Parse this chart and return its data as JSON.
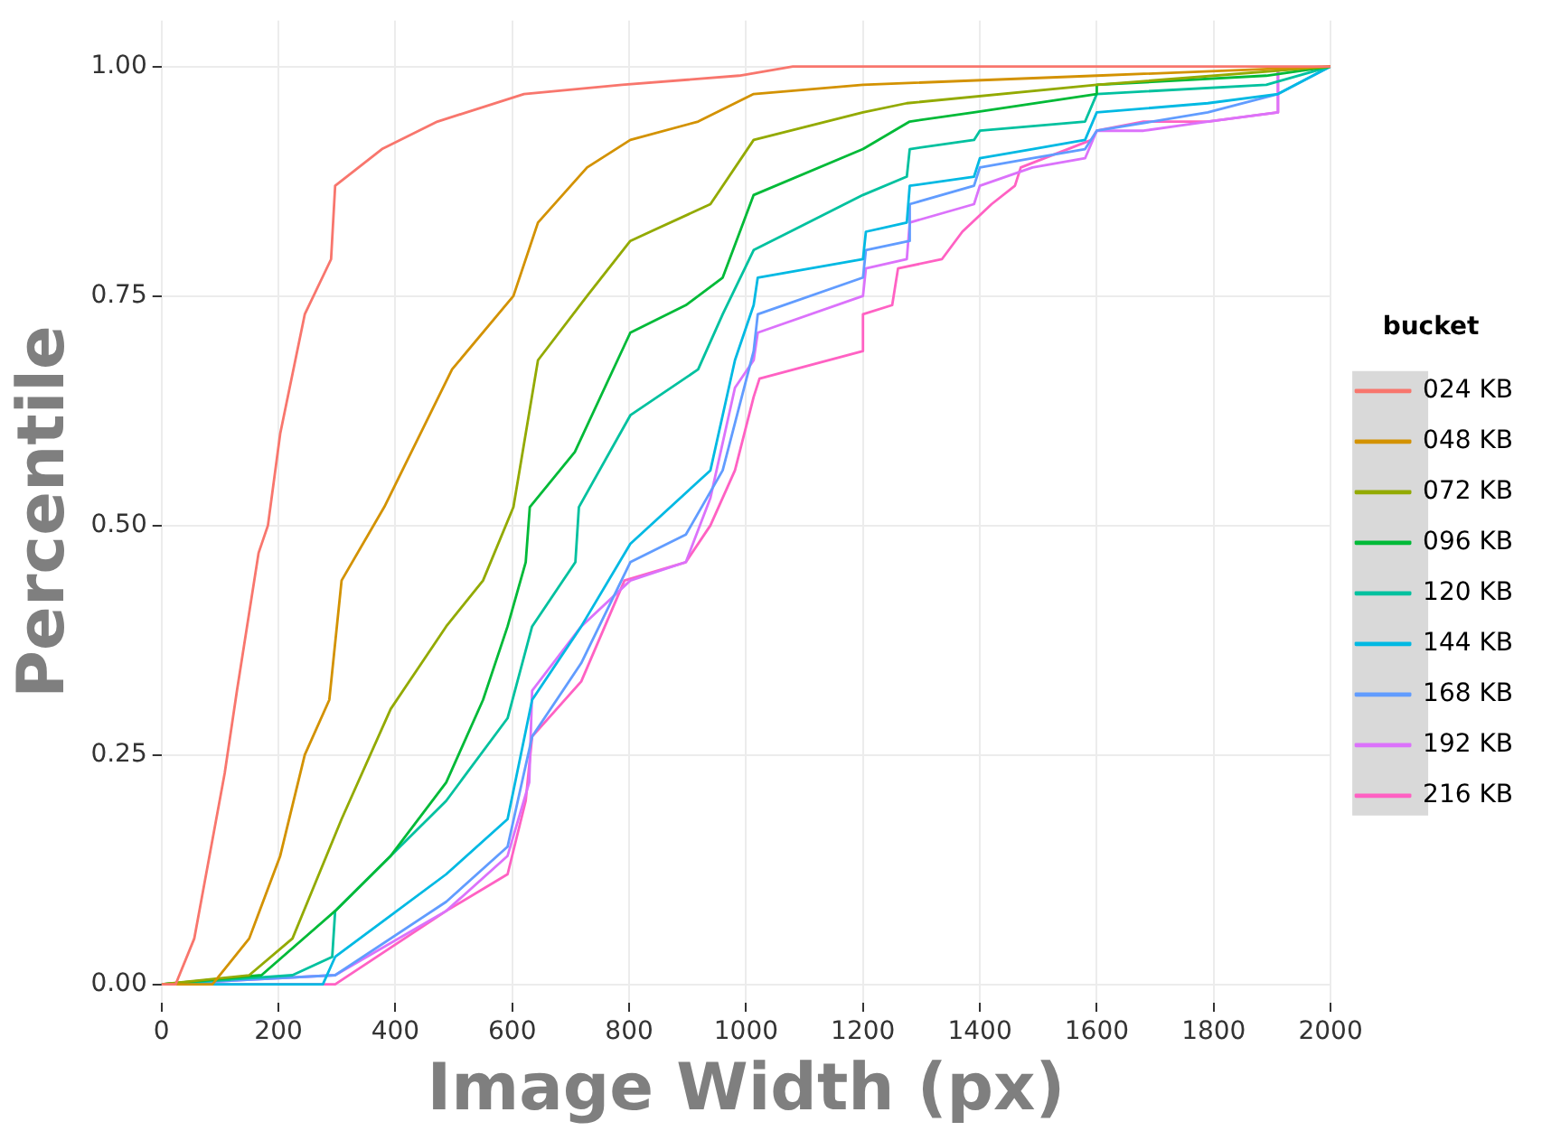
{
  "chart_data": {
    "type": "line",
    "xlabel": "Image Width (px)",
    "ylabel": "Percentile",
    "legend_title": "bucket",
    "legend": "right",
    "grid": true,
    "marker": "none",
    "line_style": "solid",
    "xlim": [
      0,
      2000
    ],
    "xticks": [
      0,
      200,
      400,
      600,
      800,
      1000,
      1200,
      1400,
      1600,
      1800,
      2000
    ],
    "ylim": [
      -0.02,
      1.05
    ],
    "yticks": [
      {
        "value": 0,
        "label": "0.00"
      },
      {
        "value": 0.25,
        "label": "0.25"
      },
      {
        "value": 0.5,
        "label": "0.50"
      },
      {
        "value": 0.75,
        "label": "0.75"
      },
      {
        "value": 1,
        "label": "1.00"
      }
    ],
    "series": [
      {
        "name": "024 KB",
        "color": "#f8766d",
        "x": [
          0,
          24,
          56,
          108,
          129,
          166,
          182,
          203,
          245,
          290,
          297,
          377,
          472,
          620,
          788,
          988,
          1080,
          2000
        ],
        "values": [
          0,
          0,
          0.05,
          0.23,
          0.32,
          0.47,
          0.5,
          0.6,
          0.73,
          0.79,
          0.87,
          0.91,
          0.94,
          0.97,
          0.98,
          0.99,
          1,
          1
        ]
      },
      {
        "name": "048 KB",
        "color": "#d39200",
        "x": [
          0,
          87,
          150,
          203,
          245,
          287,
          308,
          381,
          497,
          602,
          644,
          728,
          802,
          918,
          1013,
          1200,
          1600,
          2000
        ],
        "values": [
          0,
          0,
          0.05,
          0.14,
          0.25,
          0.31,
          0.44,
          0.52,
          0.67,
          0.75,
          0.83,
          0.89,
          0.92,
          0.94,
          0.97,
          0.98,
          0.99,
          1
        ]
      },
      {
        "name": "072 KB",
        "color": "#93aa00",
        "x": [
          0,
          150,
          224,
          308,
          392,
          487,
          550,
          602,
          644,
          728,
          802,
          939,
          1013,
          1200,
          1275,
          1600,
          2000
        ],
        "values": [
          0,
          0.01,
          0.05,
          0.18,
          0.3,
          0.39,
          0.44,
          0.52,
          0.68,
          0.75,
          0.81,
          0.85,
          0.92,
          0.95,
          0.96,
          0.98,
          1
        ]
      },
      {
        "name": "096 KB",
        "color": "#00ba38",
        "x": [
          0,
          171,
          297,
          392,
          487,
          550,
          592,
          623,
          630,
          707,
          802,
          897,
          960,
          1013,
          1200,
          1280,
          1390,
          1600,
          1600,
          1890,
          2000
        ],
        "values": [
          0,
          0.01,
          0.08,
          0.14,
          0.22,
          0.31,
          0.39,
          0.46,
          0.52,
          0.58,
          0.71,
          0.74,
          0.77,
          0.86,
          0.91,
          0.94,
          0.95,
          0.97,
          0.98,
          0.99,
          1
        ]
      },
      {
        "name": "120 KB",
        "color": "#00c19f",
        "x": [
          0,
          224,
          292,
          297,
          392,
          487,
          592,
          634,
          708,
          714,
          802,
          918,
          960,
          1013,
          1200,
          1275,
          1280,
          1390,
          1400,
          1580,
          1600,
          1890,
          2000
        ],
        "values": [
          0,
          0.01,
          0.03,
          0.08,
          0.14,
          0.2,
          0.29,
          0.39,
          0.46,
          0.52,
          0.62,
          0.67,
          0.73,
          0.8,
          0.86,
          0.88,
          0.91,
          0.92,
          0.93,
          0.94,
          0.97,
          0.98,
          1
        ]
      },
      {
        "name": "144 KB",
        "color": "#00b9e3",
        "x": [
          0,
          276,
          297,
          487,
          592,
          634,
          718,
          802,
          939,
          981,
          1013,
          1020,
          1200,
          1205,
          1275,
          1280,
          1390,
          1400,
          1490,
          1580,
          1600,
          1790,
          1910,
          2000
        ],
        "values": [
          0,
          0,
          0.03,
          0.12,
          0.18,
          0.31,
          0.39,
          0.48,
          0.56,
          0.68,
          0.74,
          0.77,
          0.79,
          0.82,
          0.83,
          0.87,
          0.88,
          0.9,
          0.91,
          0.92,
          0.95,
          0.96,
          0.97,
          1
        ]
      },
      {
        "name": "168 KB",
        "color": "#619cff",
        "x": [
          0,
          297,
          487,
          592,
          634,
          718,
          802,
          897,
          960,
          1013,
          1020,
          1200,
          1205,
          1280,
          1280,
          1390,
          1400,
          1490,
          1580,
          1600,
          1790,
          1910,
          2000
        ],
        "values": [
          0,
          0.01,
          0.09,
          0.15,
          0.27,
          0.35,
          0.46,
          0.49,
          0.56,
          0.69,
          0.73,
          0.77,
          0.8,
          0.81,
          0.85,
          0.87,
          0.89,
          0.9,
          0.91,
          0.93,
          0.95,
          0.97,
          1
        ]
      },
      {
        "name": "192 KB",
        "color": "#db72fb",
        "x": [
          0,
          297,
          487,
          592,
          629,
          634,
          718,
          802,
          897,
          939,
          981,
          1013,
          1020,
          1200,
          1205,
          1275,
          1280,
          1390,
          1400,
          1490,
          1580,
          1600,
          1680,
          1790,
          1910,
          1910
        ],
        "values": [
          0,
          0.01,
          0.08,
          0.14,
          0.22,
          0.32,
          0.39,
          0.44,
          0.46,
          0.53,
          0.65,
          0.68,
          0.71,
          0.75,
          0.78,
          0.79,
          0.83,
          0.85,
          0.87,
          0.89,
          0.9,
          0.93,
          0.93,
          0.94,
          0.95,
          1
        ]
      },
      {
        "name": "216 KB",
        "color": "#ff61c3",
        "x": [
          0,
          297,
          487,
          592,
          623,
          634,
          718,
          792,
          897,
          939,
          981,
          1013,
          1023,
          1200,
          1200,
          1250,
          1260,
          1335,
          1370,
          1420,
          1460,
          1470,
          1591,
          1600,
          1680,
          1790,
          1910,
          1910
        ],
        "values": [
          0,
          0,
          0.08,
          0.12,
          0.2,
          0.27,
          0.33,
          0.44,
          0.46,
          0.5,
          0.56,
          0.64,
          0.66,
          0.69,
          0.73,
          0.74,
          0.78,
          0.79,
          0.82,
          0.85,
          0.87,
          0.89,
          0.92,
          0.93,
          0.94,
          0.94,
          0.95,
          1
        ]
      }
    ]
  }
}
